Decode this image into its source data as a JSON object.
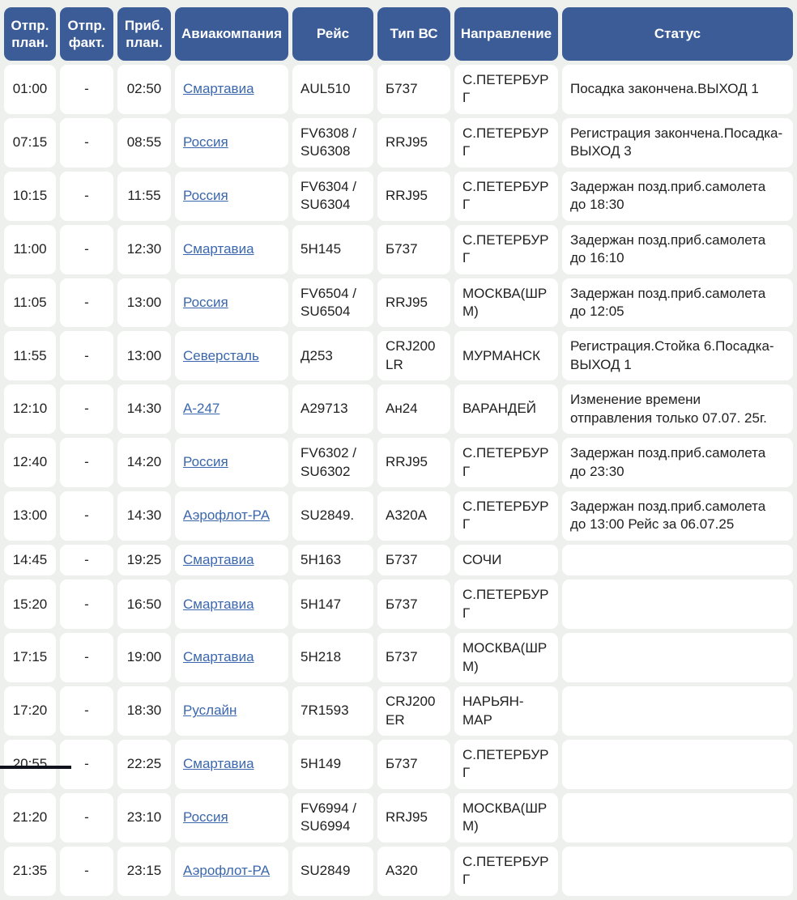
{
  "colors": {
    "header_bg": "#3c5c97",
    "header_text": "#ffffff",
    "cell_bg": "#ffffff",
    "page_bg": "#eef0ee",
    "body_text": "#212121",
    "link": "#3a67ad"
  },
  "table": {
    "headers": [
      "Отпр. план.",
      "Отпр. факт.",
      "Приб. план.",
      "Авиакомпания",
      "Рейс",
      "Тип ВС",
      "Направление",
      "Статус"
    ],
    "rows": [
      {
        "dep_plan": "01:00",
        "dep_fact": "-",
        "arr_plan": "02:50",
        "airline": "Смартавиа",
        "flight": "AUL510",
        "aircraft": "Б737",
        "destination": "С.ПЕТЕРБУРГ",
        "status": "Посадка закончена.ВЫХОД 1"
      },
      {
        "dep_plan": "07:15",
        "dep_fact": "-",
        "arr_plan": "08:55",
        "airline": "Россия",
        "flight": "FV6308 / SU6308",
        "aircraft": "RRJ95",
        "destination": "С.ПЕТЕРБУРГ",
        "status": "Регистрация закончена.Посадка-ВЫХОД 3"
      },
      {
        "dep_plan": "10:15",
        "dep_fact": "-",
        "arr_plan": "11:55",
        "airline": "Россия",
        "flight": "FV6304 / SU6304",
        "aircraft": "RRJ95",
        "destination": "С.ПЕТЕРБУРГ",
        "status": "Задержан позд.приб.самолета до 18:30"
      },
      {
        "dep_plan": "11:00",
        "dep_fact": "-",
        "arr_plan": "12:30",
        "airline": "Смартавиа",
        "flight": "5Н145",
        "aircraft": "Б737",
        "destination": "С.ПЕТЕРБУРГ",
        "status": "Задержан позд.приб.самолета до 16:10"
      },
      {
        "dep_plan": "11:05",
        "dep_fact": "-",
        "arr_plan": "13:00",
        "airline": "Россия",
        "flight": "FV6504 / SU6504",
        "aircraft": "RRJ95",
        "destination": "МОСКВА(ШРМ)",
        "status": "Задержан позд.приб.самолета до 12:05"
      },
      {
        "dep_plan": "11:55",
        "dep_fact": "-",
        "arr_plan": "13:00",
        "airline": "Северсталь",
        "flight": "Д253",
        "aircraft": "CRJ200LR",
        "destination": "МУРМАНСК",
        "status": "Регистрация.Стойка 6.Посадка-ВЫХОД 1"
      },
      {
        "dep_plan": "12:10",
        "dep_fact": "-",
        "arr_plan": "14:30",
        "airline": "А-247",
        "flight": "А29713",
        "aircraft": "Ан24",
        "destination": "ВАРАНДЕЙ",
        "status": "Изменение времени отправления только 07.07. 25г."
      },
      {
        "dep_plan": "12:40",
        "dep_fact": "-",
        "arr_plan": "14:20",
        "airline": "Россия",
        "flight": "FV6302 / SU6302",
        "aircraft": "RRJ95",
        "destination": "С.ПЕТЕРБУРГ",
        "status": "Задержан позд.приб.самолета до 23:30"
      },
      {
        "dep_plan": "13:00",
        "dep_fact": "-",
        "arr_plan": "14:30",
        "airline": "Аэрофлот-РА",
        "flight": "SU2849.",
        "aircraft": "А320A",
        "destination": "С.ПЕТЕРБУРГ",
        "status": "Задержан позд.приб.самолета до 13:00 Рейс за 06.07.25"
      },
      {
        "dep_plan": "14:45",
        "dep_fact": "-",
        "arr_plan": "19:25",
        "airline": "Смартавиа",
        "flight": "5Н163",
        "aircraft": "Б737",
        "destination": "СОЧИ",
        "status": ""
      },
      {
        "dep_plan": "15:20",
        "dep_fact": "-",
        "arr_plan": "16:50",
        "airline": "Смартавиа",
        "flight": "5Н147",
        "aircraft": "Б737",
        "destination": "С.ПЕТЕРБУРГ",
        "status": ""
      },
      {
        "dep_plan": "17:15",
        "dep_fact": "-",
        "arr_plan": "19:00",
        "airline": "Смартавиа",
        "flight": "5Н218",
        "aircraft": "Б737",
        "destination": "МОСКВА(ШРМ)",
        "status": ""
      },
      {
        "dep_plan": "17:20",
        "dep_fact": "-",
        "arr_plan": "18:30",
        "airline": "Руслайн",
        "flight": "7R1593",
        "aircraft": "CRJ200ER",
        "destination": "НАРЬЯН-МАР",
        "status": ""
      },
      {
        "dep_plan": "20:55",
        "dep_fact": "-",
        "arr_plan": "22:25",
        "airline": "Смартавиа",
        "flight": "5Н149",
        "aircraft": "Б737",
        "destination": "С.ПЕТЕРБУРГ",
        "status": ""
      },
      {
        "dep_plan": "21:20",
        "dep_fact": "-",
        "arr_plan": "23:10",
        "airline": "Россия",
        "flight": "FV6994 / SU6994",
        "aircraft": "RRJ95",
        "destination": "МОСКВА(ШРМ)",
        "status": ""
      },
      {
        "dep_plan": "21:35",
        "dep_fact": "-",
        "arr_plan": "23:15",
        "airline": "Аэрофлот-РА",
        "flight": "SU2849",
        "aircraft": "А320",
        "destination": "С.ПЕТЕРБУРГ",
        "status": ""
      }
    ]
  }
}
